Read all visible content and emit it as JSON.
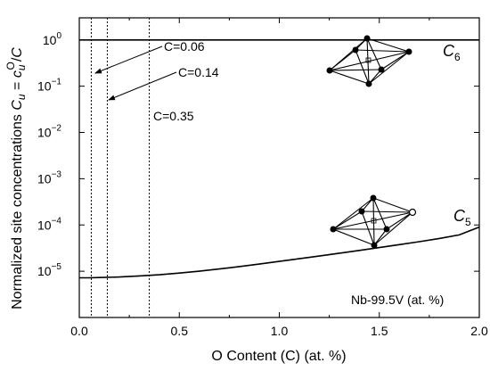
{
  "chart_data": {
    "type": "line",
    "xlabel": "O Content  (C)  (at. %)",
    "ylabel": "Normalized site concentrations  C_u = c_u^O / C",
    "xlim": [
      0,
      2.0
    ],
    "ylim": [
      1e-06,
      3
    ],
    "yscale": "log",
    "x_ticks": [
      0.0,
      0.5,
      1.0,
      1.5,
      2.0
    ],
    "x_tick_labels": [
      "0.0",
      "0.5",
      "1.0",
      "1.5",
      "2.0"
    ],
    "y_tick_exponents": [
      -5,
      -4,
      -3,
      -2,
      -1,
      0
    ],
    "y_tick_base": "10",
    "grid": false,
    "series": [
      {
        "name": "C6",
        "label_main": "C",
        "label_sub": "6",
        "x": [
          0.0,
          0.5,
          1.0,
          1.5,
          2.0
        ],
        "y": [
          0.9999,
          0.9998,
          0.9997,
          0.9995,
          0.9993
        ]
      },
      {
        "name": "C5",
        "label_main": "C",
        "label_sub": "5",
        "x": [
          0.0,
          0.05,
          0.1,
          0.2,
          0.3,
          0.4,
          0.5,
          0.6,
          0.7,
          0.8,
          0.9,
          1.0,
          1.1,
          1.2,
          1.3,
          1.4,
          1.5,
          1.6,
          1.7,
          1.8,
          1.9,
          2.0
        ],
        "y": [
          7.2e-06,
          7.2e-06,
          7.3e-06,
          7.5e-06,
          7.9e-06,
          8.4e-06,
          9.1e-06,
          1e-05,
          1.12e-05,
          1.26e-05,
          1.43e-05,
          1.63e-05,
          1.86e-05,
          2.13e-05,
          2.45e-05,
          2.82e-05,
          3.25e-05,
          3.75e-05,
          4.35e-05,
          5.1e-05,
          6.1e-05,
          9e-05
        ]
      }
    ],
    "reference_lines": [
      {
        "x": 0.06,
        "label": "C=0.06"
      },
      {
        "x": 0.14,
        "label": "C=0.14"
      },
      {
        "x": 0.35,
        "label": "C=0.35"
      }
    ],
    "annotations": [
      {
        "text": "Nb-99.5V (at. %)"
      }
    ]
  }
}
